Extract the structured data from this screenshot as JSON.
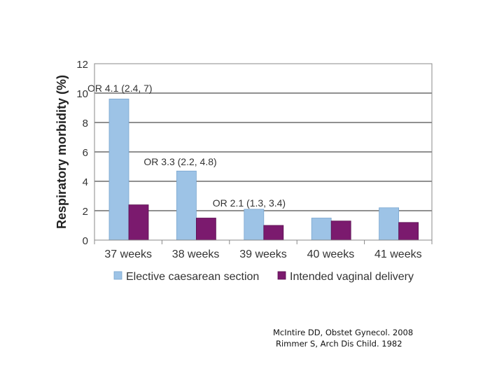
{
  "chart_data": {
    "type": "bar",
    "categories": [
      "37 weeks",
      "38 weeks",
      "39 weeks",
      "40 weeks",
      "41 weeks"
    ],
    "series": [
      {
        "name": "Elective caesarean section",
        "values": [
          9.6,
          4.7,
          2.1,
          1.5,
          2.2
        ],
        "color": "#9DC3E6"
      },
      {
        "name": "Intended vaginal delivery",
        "values": [
          2.4,
          1.5,
          1.0,
          1.3,
          1.2
        ],
        "color": "#7B1A6E"
      }
    ],
    "ylabel": "Respiratory morbidity (%)",
    "xlabel": "",
    "title": "",
    "ylim": [
      0,
      12
    ],
    "yticks": [
      0,
      2,
      4,
      6,
      8,
      10,
      12
    ],
    "grid": true,
    "legend_position": "bottom",
    "annotations": [
      {
        "category": "37 weeks",
        "text": "OR 4.1 (2.4, 7)"
      },
      {
        "category": "38 weeks",
        "text": "OR 3.3 (2.2, 4.8)"
      },
      {
        "category": "39 weeks",
        "text": "OR 2.1 (1.3, 3.4)"
      }
    ]
  },
  "references": [
    "McIntire DD, Obstet Gynecol. 2008",
    "Rimmer S, Arch Dis Child. 1982"
  ]
}
